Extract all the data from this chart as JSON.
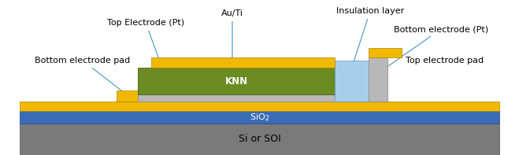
{
  "colors": {
    "gold": "#F0B800",
    "gray_pt": "#B8B8B8",
    "green_knn": "#6B8C23",
    "blue_sio2": "#3A6CB5",
    "gray_si": "#7A7A7A",
    "light_blue_ins": "#A8CFEA",
    "white": "#FFFFFF",
    "black": "#000000",
    "ann_line": "#5A9ECC"
  },
  "figsize": [
    6.59,
    1.97
  ],
  "dpi": 100,
  "layout": {
    "xlim": [
      0,
      659
    ],
    "ylim": [
      0,
      197
    ]
  }
}
